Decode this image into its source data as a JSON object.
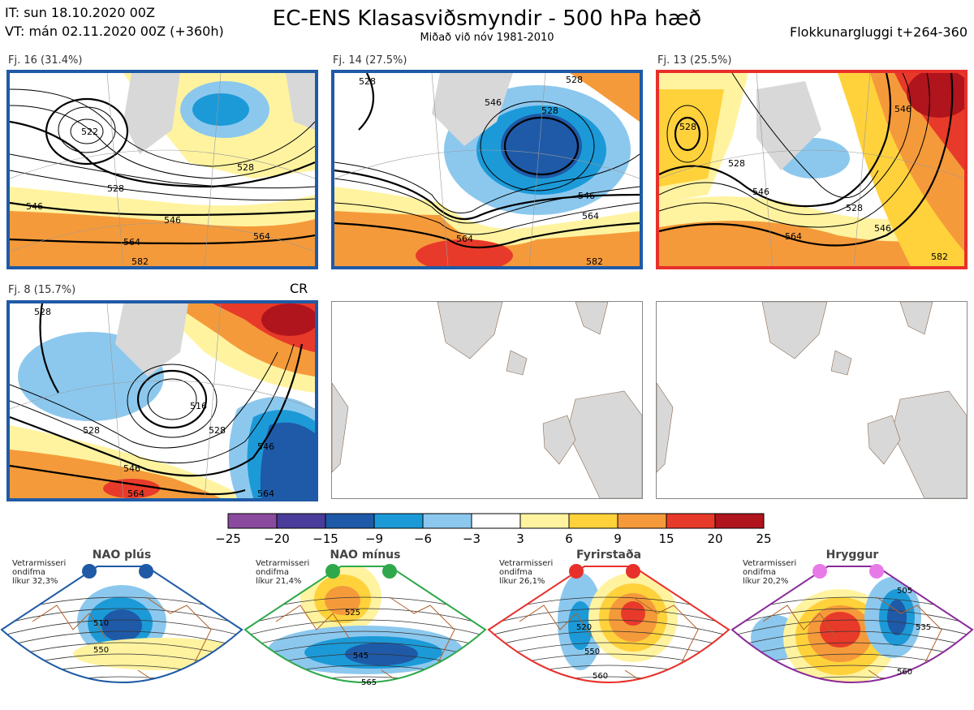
{
  "header": {
    "it_line": "IT: sun 18.10.2020 00Z",
    "vt_line": "VT: mán 02.11.2020 00Z  (+360h)",
    "title": "EC-ENS Klasasviðsmyndir - 500 hPa hæð",
    "subtitle": "Miðað við nóv 1981-2010",
    "window": "Flokkunargluggi t+264-360"
  },
  "panels": [
    {
      "label": "Fj. 16 (31.4%)",
      "border": "#1f5aa6",
      "contours": [
        "522",
        "528",
        "528",
        "546",
        "546",
        "564",
        "564",
        "582"
      ]
    },
    {
      "label": "Fj. 14 (27.5%)",
      "border": "#1f5aa6",
      "contours": [
        "528",
        "528",
        "546",
        "528",
        "546",
        "564",
        "564",
        "582"
      ]
    },
    {
      "label": "Fj. 13 (25.5%)",
      "border": "#e8302a",
      "contours": [
        "528",
        "528",
        "546",
        "546",
        "528",
        "546",
        "564",
        "582"
      ]
    },
    {
      "label": "Fj. 8 (15.7%)",
      "border": "#1f5aa6",
      "tag": "CR",
      "contours": [
        "528",
        "516",
        "528",
        "546",
        "528",
        "546",
        "564",
        "564"
      ]
    }
  ],
  "colorbar": {
    "colors": [
      "#8a4a9e",
      "#4a3c9a",
      "#1e5aa8",
      "#1c9ad8",
      "#8cc8ee",
      "#ffffff",
      "#fff3a0",
      "#ffd23c",
      "#f59a3a",
      "#e83a2a",
      "#b0141c"
    ],
    "ticks": [
      "−25",
      "−20",
      "−15",
      "−9",
      "−6",
      "−3",
      "3",
      "6",
      "9",
      "15",
      "20",
      "25"
    ]
  },
  "regimes": [
    {
      "title": "NAO plús",
      "note": [
        "Vetrarmisseri",
        "ondifma",
        "líkur 32,3%"
      ],
      "color": "#1f5aa6",
      "dot": "#1f5aa6",
      "contours": [
        "510",
        "550"
      ]
    },
    {
      "title": "NAO mínus",
      "note": [
        "Vetrarmisseri",
        "ondifma",
        "líkur 21,4%"
      ],
      "color": "#2ea84a",
      "dot": "#2ea84a",
      "contours": [
        "525",
        "545",
        "565"
      ]
    },
    {
      "title": "Fyrirstaða",
      "note": [
        "Vetrarmisseri",
        "ondifma",
        "líkur 26,1%"
      ],
      "color": "#e8302a",
      "dot": "#e8302a",
      "contours": [
        "520",
        "550",
        "560"
      ]
    },
    {
      "title": "Hryggur",
      "note": [
        "Vetrarmisseri",
        "ondifma",
        "líkur 20,2%"
      ],
      "color": "#8a2a9a",
      "dot": "#e87ae8",
      "contours": [
        "505",
        "535",
        "560"
      ]
    }
  ]
}
